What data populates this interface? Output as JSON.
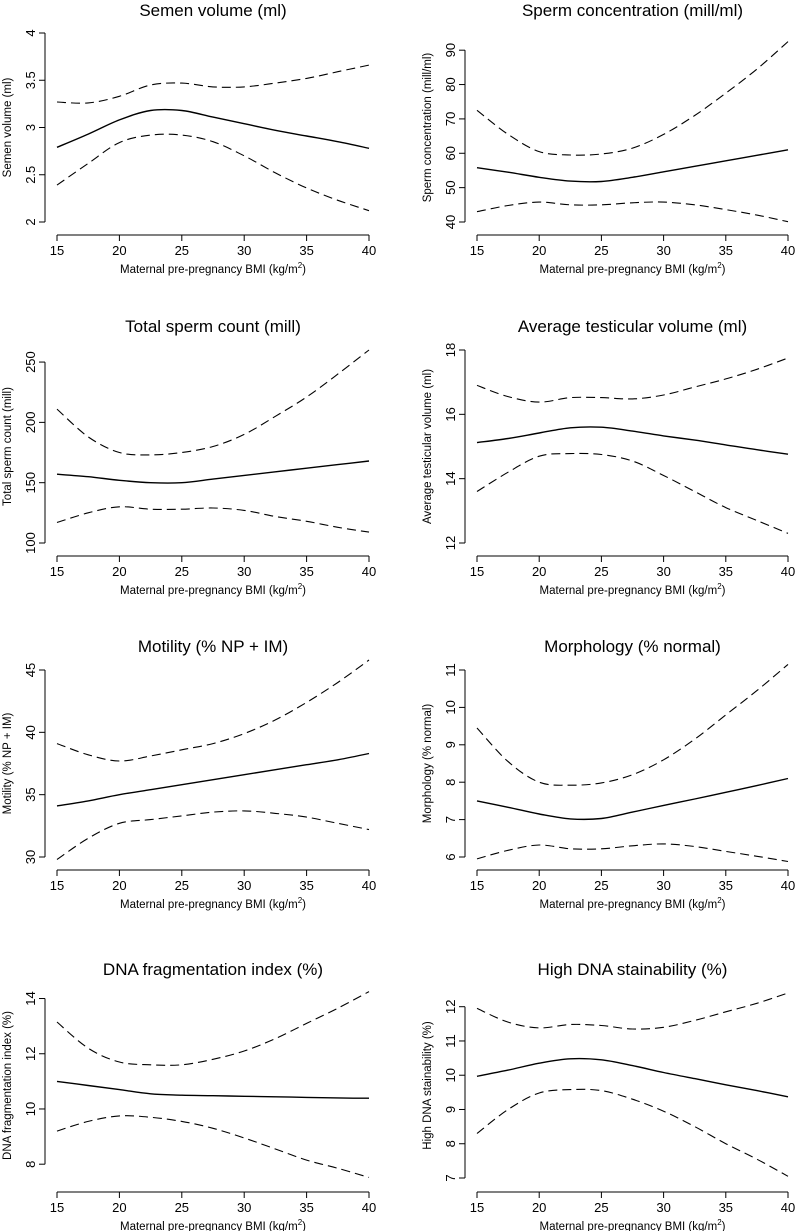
{
  "chart_data": [
    {
      "type": "line",
      "title": "Semen volume (ml)",
      "xlabel": "Maternal pre-pregnancy BMI (kg/m",
      "xlabel_sup": "2",
      "xlabel_end": ")",
      "ylabel": "Semen volume (ml)",
      "xlim": [
        15,
        40
      ],
      "ylim": [
        2,
        4
      ],
      "xticks": [
        15,
        20,
        25,
        30,
        35,
        40
      ],
      "yticks": [
        2,
        2.5,
        3,
        3.5,
        4
      ],
      "ytick_labels": [
        "2",
        "2.5",
        "3",
        "3.5",
        "4"
      ],
      "x": [
        15,
        17.5,
        20,
        22.5,
        25,
        27.5,
        30,
        32.5,
        35,
        37.5,
        40
      ],
      "series": [
        {
          "name": "estimate",
          "style": "solid",
          "values": [
            2.79,
            2.93,
            3.08,
            3.18,
            3.18,
            3.11,
            3.04,
            2.97,
            2.91,
            2.85,
            2.78
          ]
        },
        {
          "name": "upper 95% CI",
          "style": "dashed",
          "values": [
            3.27,
            3.26,
            3.33,
            3.45,
            3.47,
            3.43,
            3.43,
            3.47,
            3.52,
            3.59,
            3.66
          ]
        },
        {
          "name": "lower 95% CI",
          "style": "dashed",
          "values": [
            2.39,
            2.62,
            2.84,
            2.92,
            2.92,
            2.85,
            2.7,
            2.52,
            2.36,
            2.23,
            2.12
          ]
        }
      ]
    },
    {
      "type": "line",
      "title": "Sperm concentration (mill/ml)",
      "xlabel": "Maternal pre-pregnancy BMI (kg/m",
      "xlabel_sup": "2",
      "xlabel_end": ")",
      "ylabel": "Sperm concentration (mill/ml)",
      "xlim": [
        15,
        40
      ],
      "ylim": [
        40,
        95
      ],
      "xticks": [
        15,
        20,
        25,
        30,
        35,
        40
      ],
      "yticks": [
        40,
        50,
        60,
        70,
        80,
        90
      ],
      "ytick_labels": [
        "40",
        "50",
        "60",
        "70",
        "80",
        "90"
      ],
      "x": [
        15,
        17.5,
        20,
        22.5,
        25,
        27.5,
        30,
        32.5,
        35,
        37.5,
        40
      ],
      "series": [
        {
          "name": "estimate",
          "style": "solid",
          "values": [
            55.8,
            54.5,
            53.0,
            51.9,
            51.8,
            53.0,
            54.6,
            56.2,
            57.8,
            59.4,
            61.0
          ]
        },
        {
          "name": "upper 95% CI",
          "style": "dashed",
          "values": [
            72.5,
            65.5,
            60.5,
            59.5,
            59.8,
            61.5,
            65.5,
            71.0,
            77.5,
            84.5,
            92.5
          ]
        },
        {
          "name": "lower 95% CI",
          "style": "dashed",
          "values": [
            43.0,
            44.8,
            45.8,
            45.0,
            45.0,
            45.6,
            45.8,
            45.0,
            43.6,
            42.0,
            40.1
          ]
        }
      ]
    },
    {
      "type": "line",
      "title": "Total sperm count (mill)",
      "xlabel": "Maternal pre-pregnancy BMI (kg/m",
      "xlabel_sup": "2",
      "xlabel_end": ")",
      "ylabel": "Total sperm count (mill)",
      "xlim": [
        15,
        40
      ],
      "ylim": [
        100,
        260
      ],
      "xticks": [
        15,
        20,
        25,
        30,
        35,
        40
      ],
      "yticks": [
        100,
        150,
        200,
        250
      ],
      "ytick_labels": [
        "100",
        "150",
        "200",
        "250"
      ],
      "x": [
        15,
        17.5,
        20,
        22.5,
        25,
        27.5,
        30,
        32.5,
        35,
        37.5,
        40
      ],
      "series": [
        {
          "name": "estimate",
          "style": "solid",
          "values": [
            157,
            155,
            152,
            150,
            150,
            153,
            156,
            159,
            162,
            165,
            168
          ]
        },
        {
          "name": "upper 95% CI",
          "style": "dashed",
          "values": [
            211,
            188,
            175,
            173,
            175,
            180,
            190,
            205,
            221,
            240,
            260
          ]
        },
        {
          "name": "lower 95% CI",
          "style": "dashed",
          "values": [
            117,
            125,
            130,
            128,
            128,
            129,
            127,
            122,
            118,
            113,
            109
          ]
        }
      ]
    },
    {
      "type": "line",
      "title": "Average testicular volume (ml)",
      "xlabel": "Maternal pre-pregnancy BMI (kg/m",
      "xlabel_sup": "2",
      "xlabel_end": ")",
      "ylabel": "Average testicular volume (ml)",
      "xlim": [
        15,
        40
      ],
      "ylim": [
        12,
        18
      ],
      "xticks": [
        15,
        20,
        25,
        30,
        35,
        40
      ],
      "yticks": [
        12,
        14,
        16,
        18
      ],
      "ytick_labels": [
        "12",
        "14",
        "16",
        "18"
      ],
      "x": [
        15,
        17.5,
        20,
        22.5,
        25,
        27.5,
        30,
        32.5,
        35,
        37.5,
        40
      ],
      "series": [
        {
          "name": "estimate",
          "style": "solid",
          "values": [
            15.12,
            15.25,
            15.42,
            15.58,
            15.6,
            15.48,
            15.33,
            15.2,
            15.05,
            14.9,
            14.76
          ]
        },
        {
          "name": "upper 95% CI",
          "style": "dashed",
          "values": [
            16.9,
            16.55,
            16.38,
            16.52,
            16.52,
            16.48,
            16.6,
            16.85,
            17.1,
            17.4,
            17.75
          ]
        },
        {
          "name": "lower 95% CI",
          "style": "dashed",
          "values": [
            13.6,
            14.2,
            14.7,
            14.78,
            14.75,
            14.55,
            14.1,
            13.6,
            13.1,
            12.7,
            12.3
          ]
        }
      ]
    },
    {
      "type": "line",
      "title": "Motility (% NP + IM)",
      "xlabel": "Maternal pre-pregnancy BMI (kg/m",
      "xlabel_sup": "2",
      "xlabel_end": ")",
      "ylabel": "Motility (% NP + IM)",
      "xlim": [
        15,
        40
      ],
      "ylim": [
        30,
        45
      ],
      "xticks": [
        15,
        20,
        25,
        30,
        35,
        40
      ],
      "yticks": [
        30,
        35,
        40,
        45
      ],
      "ytick_labels": [
        "30",
        "35",
        "40",
        "45"
      ],
      "x": [
        15,
        17.5,
        20,
        22.5,
        25,
        27.5,
        30,
        32.5,
        35,
        37.5,
        40
      ],
      "series": [
        {
          "name": "estimate",
          "style": "solid",
          "values": [
            34.1,
            34.5,
            35.0,
            35.4,
            35.8,
            36.2,
            36.6,
            37.0,
            37.4,
            37.8,
            38.3
          ]
        },
        {
          "name": "upper 95% CI",
          "style": "dashed",
          "values": [
            39.1,
            38.2,
            37.7,
            38.1,
            38.6,
            39.1,
            39.9,
            41.0,
            42.4,
            44.0,
            45.8
          ]
        },
        {
          "name": "lower 95% CI",
          "style": "dashed",
          "values": [
            29.8,
            31.5,
            32.7,
            33.0,
            33.3,
            33.6,
            33.7,
            33.5,
            33.2,
            32.7,
            32.2
          ]
        }
      ]
    },
    {
      "type": "line",
      "title": "Morphology (% normal)",
      "xlabel": "Maternal pre-pregnancy BMI (kg/m",
      "xlabel_sup": "2",
      "xlabel_end": ")",
      "ylabel": "Morphology (% normal)",
      "xlim": [
        15,
        40
      ],
      "ylim": [
        6,
        11
      ],
      "xticks": [
        15,
        20,
        25,
        30,
        35,
        40
      ],
      "yticks": [
        6,
        7,
        8,
        9,
        10,
        11
      ],
      "ytick_labels": [
        "6",
        "7",
        "8",
        "9",
        "10",
        "11"
      ],
      "x": [
        15,
        17.5,
        20,
        22.5,
        25,
        27.5,
        30,
        32.5,
        35,
        37.5,
        40
      ],
      "series": [
        {
          "name": "estimate",
          "style": "solid",
          "values": [
            7.5,
            7.33,
            7.15,
            7.02,
            7.03,
            7.2,
            7.38,
            7.55,
            7.73,
            7.91,
            8.1
          ]
        },
        {
          "name": "upper 95% CI",
          "style": "dashed",
          "values": [
            9.45,
            8.55,
            8.0,
            7.92,
            7.98,
            8.2,
            8.6,
            9.15,
            9.8,
            10.45,
            11.15
          ]
        },
        {
          "name": "lower 95% CI",
          "style": "dashed",
          "values": [
            5.95,
            6.18,
            6.32,
            6.22,
            6.22,
            6.3,
            6.35,
            6.28,
            6.15,
            6.02,
            5.88
          ]
        }
      ]
    },
    {
      "type": "line",
      "title": "DNA fragmentation index (%)",
      "xlabel": "Maternal pre-pregnancy BMI (kg/m",
      "xlabel_sup": "2",
      "xlabel_end": ")",
      "ylabel": "DNA fragmentation index (%)",
      "xlim": [
        15,
        40
      ],
      "ylim": [
        7.5,
        14.2
      ],
      "xticks": [
        15,
        20,
        25,
        30,
        35,
        40
      ],
      "yticks": [
        8,
        10,
        12,
        14
      ],
      "ytick_labels": [
        "8",
        "10",
        "12",
        "14"
      ],
      "x": [
        15,
        17.5,
        20,
        22.5,
        25,
        27.5,
        30,
        32.5,
        35,
        37.5,
        40
      ],
      "series": [
        {
          "name": "estimate",
          "style": "solid",
          "values": [
            11.0,
            10.85,
            10.7,
            10.55,
            10.5,
            10.48,
            10.46,
            10.44,
            10.42,
            10.4,
            10.39
          ]
        },
        {
          "name": "upper 95% CI",
          "style": "dashed",
          "values": [
            13.15,
            12.2,
            11.7,
            11.6,
            11.6,
            11.8,
            12.1,
            12.55,
            13.1,
            13.65,
            14.25
          ]
        },
        {
          "name": "lower 95% CI",
          "style": "dashed",
          "values": [
            9.2,
            9.55,
            9.75,
            9.7,
            9.55,
            9.3,
            8.95,
            8.55,
            8.15,
            7.85,
            7.52
          ]
        }
      ]
    },
    {
      "type": "line",
      "title": "High DNA stainability (%)",
      "xlabel": "Maternal pre-pregnancy BMI (kg/m",
      "xlabel_sup": "2",
      "xlabel_end": ")",
      "ylabel": "High DNA stainability (%)",
      "xlim": [
        15,
        40
      ],
      "ylim": [
        7,
        12.4
      ],
      "xticks": [
        15,
        20,
        25,
        30,
        35,
        40
      ],
      "yticks": [
        7,
        8,
        9,
        10,
        11,
        12
      ],
      "ytick_labels": [
        "7",
        "8",
        "9",
        "10",
        "11",
        "12"
      ],
      "x": [
        15,
        17.5,
        20,
        22.5,
        25,
        27.5,
        30,
        32.5,
        35,
        37.5,
        40
      ],
      "series": [
        {
          "name": "estimate",
          "style": "solid",
          "values": [
            9.97,
            10.15,
            10.35,
            10.48,
            10.45,
            10.28,
            10.08,
            9.9,
            9.72,
            9.55,
            9.37
          ]
        },
        {
          "name": "upper 95% CI",
          "style": "dashed",
          "values": [
            11.95,
            11.55,
            11.38,
            11.48,
            11.45,
            11.35,
            11.4,
            11.6,
            11.85,
            12.1,
            12.4
          ]
        },
        {
          "name": "lower 95% CI",
          "style": "dashed",
          "values": [
            8.3,
            9.0,
            9.48,
            9.58,
            9.55,
            9.3,
            8.95,
            8.5,
            8.0,
            7.55,
            7.05
          ]
        }
      ]
    }
  ]
}
